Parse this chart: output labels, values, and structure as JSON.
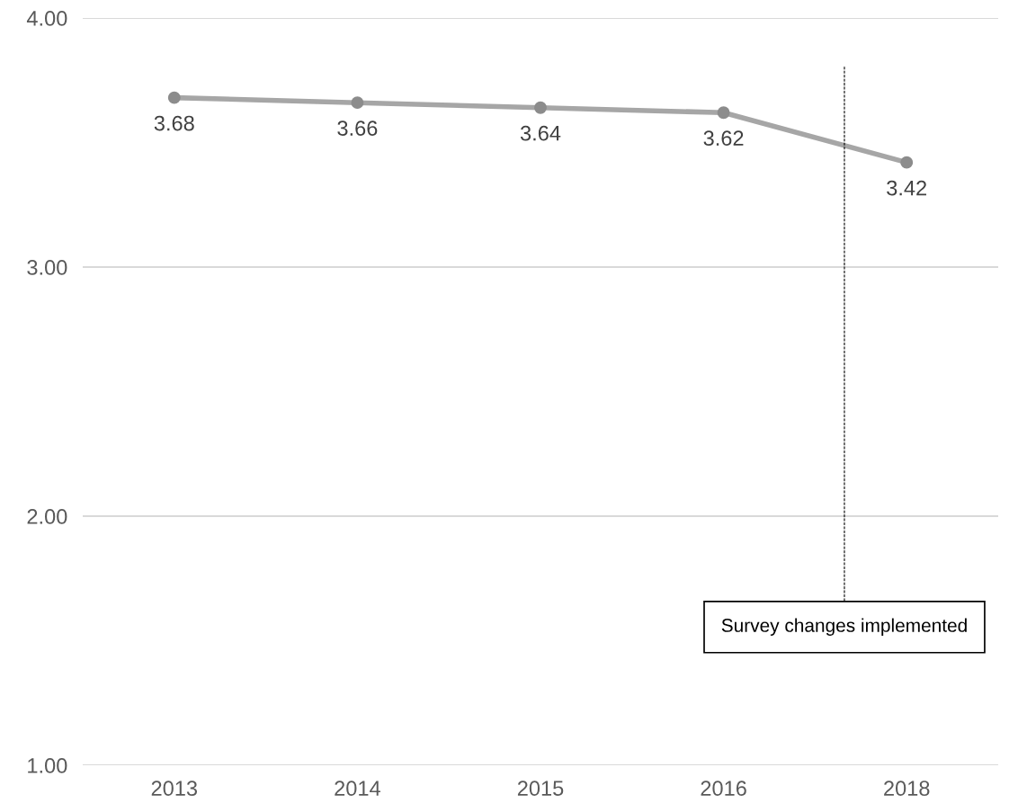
{
  "chart_data": {
    "type": "line",
    "categories": [
      "2013",
      "2014",
      "2015",
      "2016",
      "2018"
    ],
    "series": [
      {
        "color": "#a6a6a6",
        "values": [
          3.68,
          3.66,
          3.64,
          3.62,
          3.42
        ]
      }
    ],
    "ylim": [
      1,
      4
    ],
    "yticks": [
      {
        "value": 1,
        "label": "1.00"
      },
      {
        "value": 2,
        "label": "2.00"
      },
      {
        "value": 3,
        "label": "3.00"
      },
      {
        "value": 4,
        "label": "4.00"
      }
    ],
    "grid": "y",
    "marker": "circle",
    "line_style": "solid",
    "data_labels": true,
    "annotations": [
      "Survey changes implemented"
    ]
  }
}
